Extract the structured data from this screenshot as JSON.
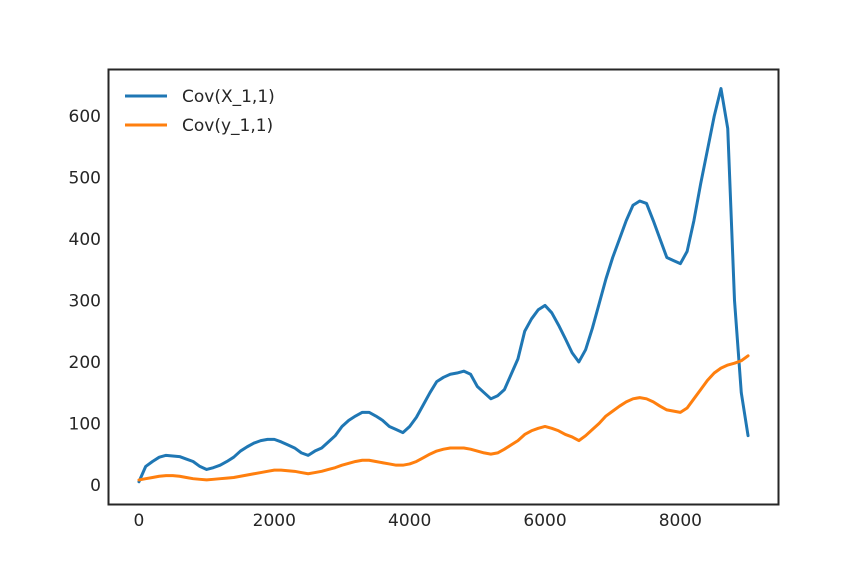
{
  "chart_data": {
    "type": "line",
    "title": "",
    "xlabel": "",
    "ylabel": "",
    "xlim": [
      -450,
      9450
    ],
    "ylim": [
      -32,
      676
    ],
    "xticks": [
      0,
      2000,
      4000,
      6000,
      8000
    ],
    "yticks": [
      0,
      100,
      200,
      300,
      400,
      500,
      600
    ],
    "grid": false,
    "legend_position": "top-left",
    "series": [
      {
        "name": "Cov(X_1,1)",
        "color": "#1f77b4",
        "x": [
          0,
          100,
          200,
          300,
          400,
          500,
          600,
          700,
          800,
          900,
          1000,
          1100,
          1200,
          1300,
          1400,
          1500,
          1600,
          1700,
          1800,
          1900,
          2000,
          2100,
          2200,
          2300,
          2400,
          2500,
          2600,
          2700,
          2800,
          2900,
          3000,
          3100,
          3200,
          3300,
          3400,
          3500,
          3600,
          3700,
          3800,
          3900,
          4000,
          4100,
          4200,
          4300,
          4400,
          4500,
          4600,
          4700,
          4800,
          4900,
          5000,
          5100,
          5200,
          5300,
          5400,
          5500,
          5600,
          5700,
          5800,
          5900,
          6000,
          6100,
          6200,
          6300,
          6400,
          6500,
          6600,
          6700,
          6800,
          6900,
          7000,
          7100,
          7200,
          7300,
          7400,
          7500,
          7600,
          7700,
          7800,
          7900,
          8000,
          8100,
          8200,
          8300,
          8400,
          8500,
          8600,
          8700,
          8800,
          8900,
          9000
        ],
        "values": [
          5,
          30,
          38,
          45,
          48,
          47,
          46,
          42,
          38,
          30,
          25,
          28,
          32,
          38,
          45,
          55,
          62,
          68,
          72,
          74,
          74,
          70,
          65,
          60,
          52,
          48,
          55,
          60,
          70,
          80,
          95,
          105,
          112,
          118,
          118,
          112,
          105,
          95,
          90,
          85,
          95,
          110,
          130,
          150,
          168,
          175,
          180,
          182,
          185,
          180,
          160,
          150,
          140,
          145,
          155,
          180,
          205,
          250,
          270,
          285,
          292,
          280,
          260,
          238,
          215,
          200,
          220,
          255,
          295,
          335,
          370,
          400,
          430,
          455,
          462,
          458,
          430,
          400,
          370,
          365,
          360,
          380,
          430,
          490,
          545,
          600,
          645,
          580,
          300,
          150,
          80
        ]
      },
      {
        "name": "Cov(y_1,1)",
        "color": "#ff7f0e",
        "x": [
          0,
          100,
          200,
          300,
          400,
          500,
          600,
          700,
          800,
          900,
          1000,
          1100,
          1200,
          1300,
          1400,
          1500,
          1600,
          1700,
          1800,
          1900,
          2000,
          2100,
          2200,
          2300,
          2400,
          2500,
          2600,
          2700,
          2800,
          2900,
          3000,
          3100,
          3200,
          3300,
          3400,
          3500,
          3600,
          3700,
          3800,
          3900,
          4000,
          4100,
          4200,
          4300,
          4400,
          4500,
          4600,
          4700,
          4800,
          4900,
          5000,
          5100,
          5200,
          5300,
          5400,
          5500,
          5600,
          5700,
          5800,
          5900,
          6000,
          6100,
          6200,
          6300,
          6400,
          6500,
          6600,
          6700,
          6800,
          6900,
          7000,
          7100,
          7200,
          7300,
          7400,
          7500,
          7600,
          7700,
          7800,
          7900,
          8000,
          8100,
          8200,
          8300,
          8400,
          8500,
          8600,
          8700,
          8800,
          8900,
          9000
        ],
        "values": [
          8,
          10,
          12,
          14,
          15,
          15,
          14,
          12,
          10,
          9,
          8,
          9,
          10,
          11,
          12,
          14,
          16,
          18,
          20,
          22,
          24,
          24,
          23,
          22,
          20,
          18,
          20,
          22,
          25,
          28,
          32,
          35,
          38,
          40,
          40,
          38,
          36,
          34,
          32,
          32,
          34,
          38,
          44,
          50,
          55,
          58,
          60,
          60,
          60,
          58,
          55,
          52,
          50,
          52,
          58,
          65,
          72,
          82,
          88,
          92,
          95,
          92,
          88,
          82,
          78,
          72,
          80,
          90,
          100,
          112,
          120,
          128,
          135,
          140,
          142,
          140,
          135,
          128,
          122,
          120,
          118,
          125,
          140,
          155,
          170,
          182,
          190,
          195,
          198,
          202,
          210
        ]
      }
    ]
  }
}
